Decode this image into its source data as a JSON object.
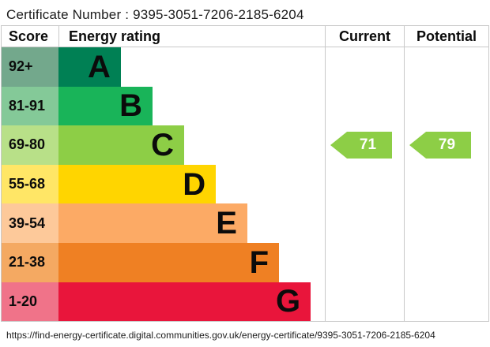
{
  "certificate_line": "Certificate Number : 9395-3051-7206-2185-6204",
  "certificate_number": "9395-3051-7206-2185-6204",
  "table": {
    "columns": [
      "Score",
      "Energy rating",
      "Current",
      "Potential"
    ],
    "bands": [
      {
        "score": "92+",
        "letter": "A",
        "band_color": "#008054",
        "score_color": "#73a88c",
        "width_pct": 23.4
      },
      {
        "score": "81-91",
        "letter": "B",
        "band_color": "#19b459",
        "score_color": "#84c998",
        "width_pct": 35.3
      },
      {
        "score": "69-80",
        "letter": "C",
        "band_color": "#8dce46",
        "score_color": "#b8e088",
        "width_pct": 47.2
      },
      {
        "score": "55-68",
        "letter": "D",
        "band_color": "#ffd500",
        "score_color": "#ffe666",
        "width_pct": 59.1
      },
      {
        "score": "39-54",
        "letter": "E",
        "band_color": "#fcaa65",
        "score_color": "#fdc99a",
        "width_pct": 70.9
      },
      {
        "score": "21-38",
        "letter": "F",
        "band_color": "#ef8023",
        "score_color": "#f4a962",
        "width_pct": 82.8
      },
      {
        "score": "1-20",
        "letter": "G",
        "band_color": "#e9153b",
        "score_color": "#f07389",
        "width_pct": 94.7
      }
    ],
    "current": {
      "value": "71",
      "band": "C",
      "row_index": 2,
      "color": "#8dce46"
    },
    "potential": {
      "value": "79",
      "band": "C",
      "row_index": 2,
      "color": "#8dce46"
    }
  },
  "footer": {
    "url": "https://find-energy-certificate.digital.communities.gov.uk/energy-certificate/9395-3051-7206-2185-6204"
  },
  "chart_data": {
    "type": "bar",
    "title": "Certificate Number : 9395-3051-7206-2185-6204",
    "categories": [
      "A",
      "B",
      "C",
      "D",
      "E",
      "F",
      "G"
    ],
    "score_ranges": [
      "92+",
      "81-91",
      "69-80",
      "55-68",
      "39-54",
      "21-38",
      "1-20"
    ],
    "bar_lengths_pct": [
      23.4,
      35.3,
      47.2,
      59.1,
      70.9,
      82.8,
      94.7
    ],
    "band_colors": [
      "#008054",
      "#19b459",
      "#8dce46",
      "#ffd500",
      "#fcaa65",
      "#ef8023",
      "#e9153b"
    ],
    "score_cell_colors": [
      "#73a88c",
      "#84c998",
      "#b8e088",
      "#ffe666",
      "#fdc99a",
      "#f4a962",
      "#f07389"
    ],
    "columns": [
      "Score",
      "Energy rating",
      "Current",
      "Potential"
    ],
    "current": {
      "value": 71,
      "band": "C"
    },
    "potential": {
      "value": 79,
      "band": "C"
    },
    "legend_position": "none",
    "grid": false
  }
}
